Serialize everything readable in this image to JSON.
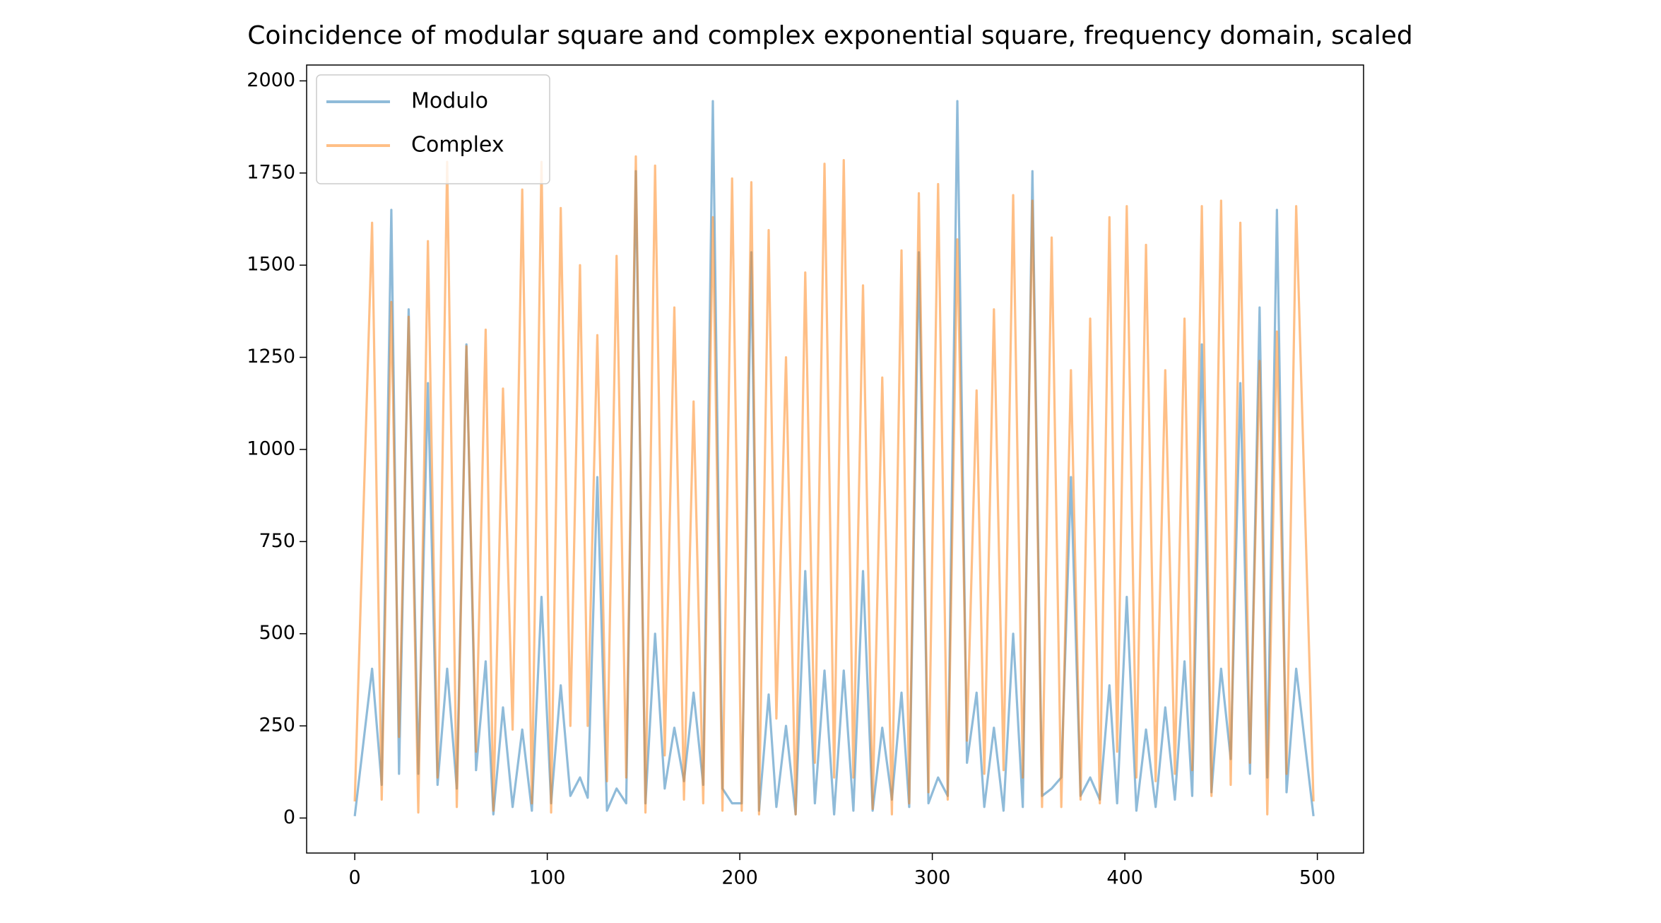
{
  "chart_data": {
    "type": "line",
    "title": "Coincidence of modular square and complex exponential square, frequency domain, scaled",
    "x": [
      0,
      9,
      14,
      19,
      23,
      28,
      33,
      38,
      43,
      48,
      53,
      58,
      63,
      68,
      72,
      77,
      82,
      87,
      92,
      97,
      102,
      107,
      112,
      117,
      121,
      126,
      131,
      136,
      141,
      146,
      151,
      156,
      161,
      166,
      171,
      176,
      181,
      186,
      191,
      196,
      201,
      206,
      210,
      215,
      219,
      224,
      229,
      234,
      239,
      244,
      249,
      254,
      259,
      264,
      269,
      274,
      279,
      284,
      288,
      293,
      298,
      303,
      308,
      313,
      318,
      323,
      327,
      332,
      337,
      342,
      347,
      352,
      357,
      362,
      367,
      372,
      377,
      382,
      387,
      392,
      396,
      401,
      406,
      411,
      416,
      421,
      426,
      431,
      435,
      440,
      445,
      450,
      455,
      460,
      465,
      470,
      474,
      479,
      484,
      489,
      498
    ],
    "series": [
      {
        "name": "Modulo",
        "color": "#1f77b4",
        "values": [
          5,
          405,
          90,
          1650,
          120,
          1380,
          120,
          1180,
          90,
          405,
          80,
          1285,
          130,
          425,
          10,
          300,
          30,
          240,
          20,
          600,
          40,
          360,
          60,
          110,
          55,
          925,
          20,
          80,
          40,
          1755,
          40,
          500,
          80,
          245,
          100,
          340,
          90,
          1945,
          80,
          40,
          40,
          1535,
          20,
          335,
          30,
          250,
          10,
          670,
          40,
          400,
          10,
          400,
          20,
          670,
          20,
          245,
          50,
          340,
          30,
          1535,
          40,
          110,
          60,
          1945,
          150,
          340,
          30,
          245,
          20,
          500,
          30,
          1755,
          60,
          80,
          110,
          925,
          60,
          110,
          50,
          360,
          40,
          600,
          20,
          240,
          30,
          300,
          50,
          425,
          60,
          1285,
          70,
          405,
          160,
          1180,
          120,
          1385,
          110,
          1650,
          70,
          405,
          5
        ]
      },
      {
        "name": "Complex",
        "color": "#ff7f0e",
        "values": [
          45,
          1615,
          50,
          1400,
          220,
          1360,
          15,
          1565,
          110,
          1780,
          30,
          1280,
          180,
          1325,
          20,
          1165,
          240,
          1705,
          40,
          1780,
          15,
          1655,
          250,
          1500,
          250,
          1310,
          100,
          1525,
          110,
          1795,
          15,
          1770,
          170,
          1385,
          50,
          1130,
          40,
          1630,
          20,
          1735,
          20,
          1725,
          10,
          1595,
          270,
          1250,
          10,
          1480,
          150,
          1775,
          110,
          1785,
          110,
          1445,
          25,
          1195,
          10,
          1540,
          40,
          1695,
          70,
          1720,
          50,
          1570,
          210,
          1160,
          120,
          1380,
          130,
          1690,
          110,
          1675,
          30,
          1575,
          30,
          1215,
          50,
          1355,
          40,
          1630,
          180,
          1660,
          110,
          1555,
          100,
          1215,
          120,
          1355,
          130,
          1660,
          60,
          1675,
          90,
          1615,
          150,
          1240,
          10,
          1320,
          120,
          1660,
          45
        ]
      }
    ],
    "xlim": [
      -25,
      524
    ],
    "ylim": [
      -95,
      2043
    ],
    "xticks": [
      0,
      100,
      200,
      300,
      400,
      500
    ],
    "yticks": [
      0,
      250,
      500,
      750,
      1000,
      1250,
      1500,
      1750,
      2000
    ],
    "legend": "upper left",
    "line_alpha": 0.5
  }
}
